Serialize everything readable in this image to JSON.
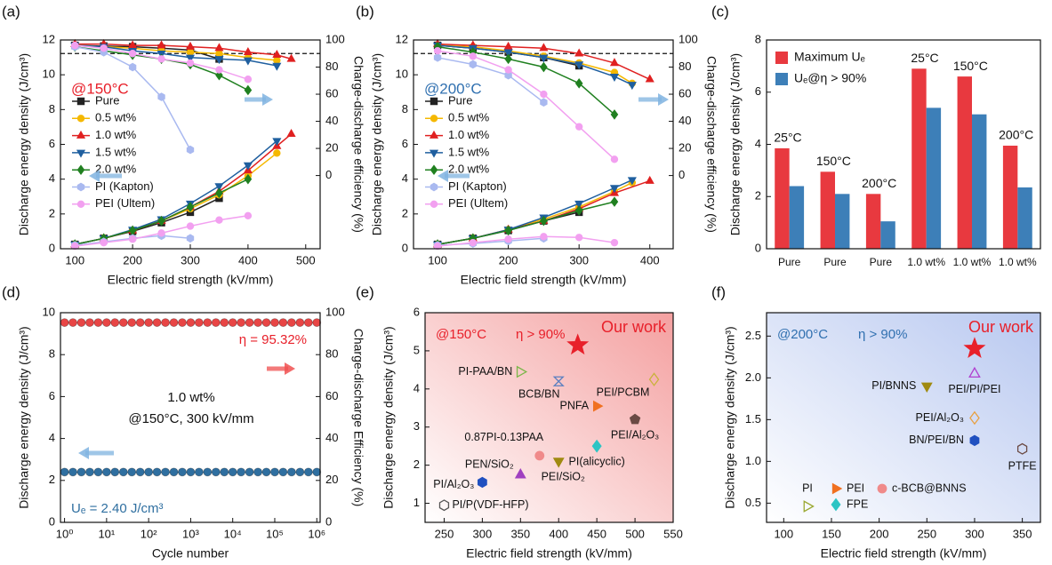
{
  "chart_data": [
    {
      "type": "line",
      "panel": "(a)",
      "xlabel": "Electric field strength (kV/mm)",
      "ylabel": "Discharge energy density (J/cm³)",
      "y2label": "Charge-discharge efficiency (%)",
      "xlim": [
        75,
        525
      ],
      "xticks": [
        100,
        200,
        300,
        400,
        500
      ],
      "ylim": [
        0,
        12
      ],
      "yticks": [
        0,
        2,
        4,
        6,
        8,
        10,
        12
      ],
      "y2lim": [
        -54,
        100
      ],
      "y2ticks": [
        0,
        20,
        40,
        60,
        80,
        100
      ],
      "threshold": 90,
      "annotations": [
        {
          "text": "@150°C",
          "color": "#e8202a"
        }
      ],
      "series": [
        {
          "name": "Pure",
          "color": "#222222",
          "marker": "square",
          "x": [
            100,
            150,
            200,
            250,
            300,
            350
          ],
          "values": [
            0.25,
            0.6,
            1.0,
            1.5,
            2.1,
            2.9
          ],
          "efficiency": [
            96,
            95.5,
            95,
            94,
            92.5,
            86
          ]
        },
        {
          "name": "0.5 wt%",
          "color": "#f5b800",
          "marker": "circle",
          "x": [
            100,
            150,
            200,
            250,
            300,
            350,
            400,
            450
          ],
          "values": [
            0.25,
            0.6,
            1.05,
            1.6,
            2.3,
            3.1,
            4.2,
            5.5
          ],
          "efficiency": [
            96,
            95,
            94,
            92,
            91,
            90,
            87,
            85
          ]
        },
        {
          "name": "1.0 wt%",
          "color": "#e02020",
          "marker": "tri-up",
          "x": [
            100,
            150,
            200,
            250,
            300,
            350,
            400,
            450,
            475
          ],
          "values": [
            0.25,
            0.6,
            1.05,
            1.6,
            2.4,
            3.3,
            4.5,
            5.9,
            6.6
          ],
          "efficiency": [
            97,
            97,
            96,
            96,
            95,
            94,
            91,
            89,
            86
          ]
        },
        {
          "name": "1.5 wt%",
          "color": "#1f5f9f",
          "marker": "tri-down",
          "x": [
            100,
            150,
            200,
            250,
            300,
            350,
            400,
            450
          ],
          "values": [
            0.25,
            0.6,
            1.1,
            1.7,
            2.6,
            3.6,
            4.8,
            6.2
          ],
          "efficiency": [
            96,
            95,
            92,
            90,
            87,
            86,
            85,
            81
          ]
        },
        {
          "name": "2.0 wt%",
          "color": "#208020",
          "marker": "diamond",
          "x": [
            100,
            150,
            200,
            250,
            300,
            350,
            400
          ],
          "values": [
            0.25,
            0.6,
            1.05,
            1.6,
            2.4,
            3.2,
            4.0
          ],
          "efficiency": [
            95,
            92,
            89,
            86,
            82,
            74,
            63
          ]
        },
        {
          "name": "PI (Kapton)",
          "color": "#a9b9f0",
          "marker": "hexagon",
          "x": [
            100,
            150,
            200,
            250,
            300
          ],
          "values": [
            0.2,
            0.4,
            0.6,
            0.75,
            0.6
          ],
          "efficiency": [
            95,
            91,
            80,
            58,
            19
          ]
        },
        {
          "name": "PEI (Ultem)",
          "color": "#f2a0f0",
          "marker": "circle",
          "x": [
            100,
            150,
            200,
            250,
            300,
            350,
            400
          ],
          "values": [
            0.15,
            0.35,
            0.55,
            0.9,
            1.3,
            1.65,
            1.9
          ],
          "efficiency": [
            96,
            94,
            90,
            86,
            83,
            78,
            71
          ]
        }
      ]
    },
    {
      "type": "line",
      "panel": "(b)",
      "xlabel": "Electric field strength (kV/mm)",
      "ylabel": "Discharge energy density (J/cm³)",
      "y2label": "Charge-discharge efficiency (%)",
      "xlim": [
        66,
        433
      ],
      "xticks": [
        100,
        200,
        300,
        400
      ],
      "ylim": [
        0,
        12
      ],
      "yticks": [
        0,
        2,
        4,
        6,
        8,
        10,
        12
      ],
      "y2lim": [
        -54,
        100
      ],
      "y2ticks": [
        0,
        20,
        40,
        60,
        80,
        100
      ],
      "threshold": 90,
      "annotations": [
        {
          "text": "@200°C",
          "color": "#3070b0"
        }
      ],
      "series": [
        {
          "name": "Pure",
          "color": "#222222",
          "marker": "square",
          "x": [
            100,
            150,
            200,
            250,
            300
          ],
          "values": [
            0.25,
            0.6,
            1.05,
            1.6,
            2.1
          ],
          "efficiency": [
            96,
            94,
            91,
            87,
            81
          ]
        },
        {
          "name": "0.5 wt%",
          "color": "#f5b800",
          "marker": "circle",
          "x": [
            100,
            150,
            200,
            250,
            300,
            350,
            375
          ],
          "values": [
            0.25,
            0.6,
            1.1,
            1.7,
            2.4,
            3.3,
            3.8
          ],
          "efficiency": [
            96,
            95,
            92,
            88,
            83,
            76,
            68
          ]
        },
        {
          "name": "1.0 wt%",
          "color": "#e02020",
          "marker": "tri-up",
          "x": [
            100,
            150,
            200,
            250,
            300,
            350,
            400
          ],
          "values": [
            0.25,
            0.6,
            1.1,
            1.6,
            2.3,
            3.2,
            3.9
          ],
          "efficiency": [
            97,
            96,
            95,
            94,
            90,
            83,
            71
          ]
        },
        {
          "name": "1.5 wt%",
          "color": "#1f5f9f",
          "marker": "tri-down",
          "x": [
            100,
            150,
            200,
            250,
            300,
            350,
            375
          ],
          "values": [
            0.25,
            0.6,
            1.1,
            1.8,
            2.6,
            3.5,
            3.95
          ],
          "efficiency": [
            96,
            94,
            91,
            87,
            82,
            73,
            67
          ]
        },
        {
          "name": "2.0 wt%",
          "color": "#208020",
          "marker": "diamond",
          "x": [
            100,
            150,
            200,
            250,
            300,
            350
          ],
          "values": [
            0.25,
            0.6,
            1.05,
            1.6,
            2.2,
            2.7
          ],
          "efficiency": [
            95,
            91,
            86,
            80,
            68,
            45
          ]
        },
        {
          "name": "PI (Kapton)",
          "color": "#a9b9f0",
          "marker": "hexagon",
          "x": [
            100,
            150,
            200,
            250
          ],
          "values": [
            0.2,
            0.3,
            0.45,
            0.6
          ],
          "efficiency": [
            87,
            82,
            74,
            54
          ]
        },
        {
          "name": "PEI (Ultem)",
          "color": "#f2a0f0",
          "marker": "circle",
          "x": [
            100,
            150,
            200,
            250,
            300,
            350
          ],
          "values": [
            0.15,
            0.35,
            0.55,
            0.7,
            0.65,
            0.35
          ],
          "efficiency": [
            92,
            88,
            78,
            60,
            36,
            12
          ]
        }
      ]
    },
    {
      "type": "bar",
      "panel": "(c)",
      "ylabel": "Discharge energy density (J/cm³)",
      "categories": [
        "Pure",
        "Pure",
        "Pure",
        "1.0 wt%",
        "1.0 wt%",
        "1.0 wt%"
      ],
      "bar_labels": [
        "25°C",
        "150°C",
        "200°C",
        "25°C",
        "150°C",
        "200°C"
      ],
      "ylim": [
        0,
        8
      ],
      "yticks": [
        0,
        2,
        4,
        6,
        8
      ],
      "series": [
        {
          "name": "Maximum Uₑ",
          "color": "#e8393f",
          "values": [
            3.85,
            2.95,
            2.1,
            6.9,
            6.6,
            3.95
          ]
        },
        {
          "name": "Uₑ@η > 90%",
          "color": "#3d7fb8",
          "values": [
            2.4,
            2.1,
            1.05,
            5.4,
            5.15,
            2.35
          ]
        }
      ]
    },
    {
      "type": "line",
      "panel": "(d)",
      "xlabel": "Cycle number",
      "ylabel": "Discharge energy density (J/cm³)",
      "y2label": "Charge-discharge Efficiency (%)",
      "xlog": true,
      "xlim": [
        0.8,
        1200000
      ],
      "xticks": [
        {
          "value": 1,
          "label": "10⁰"
        },
        {
          "value": 10,
          "label": "10¹"
        },
        {
          "value": 100,
          "label": "10²"
        },
        {
          "value": 1000,
          "label": "10³"
        },
        {
          "value": 10000,
          "label": "10⁴"
        },
        {
          "value": 100000,
          "label": "10⁵"
        },
        {
          "value": 1000000,
          "label": "10⁶"
        }
      ],
      "ylim": [
        0,
        10
      ],
      "yticks": [
        0,
        2,
        4,
        6,
        8,
        10
      ],
      "y2lim": [
        0,
        100
      ],
      "y2ticks": [
        0,
        20,
        40,
        60,
        80,
        100
      ],
      "annotations": [
        {
          "text": "η = 95.32%",
          "color": "#e8202a"
        },
        {
          "text": "1.0 wt%",
          "color": "#111111"
        },
        {
          "text": "@150°C, 300 kV/mm",
          "color": "#111111"
        },
        {
          "text": "Uₑ = 2.40 J/cm³",
          "color": "#2f6fa0"
        }
      ],
      "x": [
        1,
        1.58,
        2.51,
        3.98,
        6.31,
        10,
        15.8,
        25.1,
        39.8,
        63.1,
        100,
        158,
        251,
        398,
        631,
        1000,
        1580,
        2510,
        3980,
        6310,
        10000,
        15800,
        25100,
        39800,
        63100,
        100000,
        158000,
        251000,
        398000,
        631000,
        1000000
      ],
      "series": [
        {
          "color": "#e84545",
          "marker": "ball",
          "axis": "y2",
          "values": [
            95.3,
            95.3,
            95.3,
            95.3,
            95.3,
            95.3,
            95.3,
            95.3,
            95.3,
            95.3,
            95.3,
            95.3,
            95.3,
            95.3,
            95.3,
            95.3,
            95.3,
            95.3,
            95.3,
            95.3,
            95.3,
            95.3,
            95.3,
            95.3,
            95.3,
            95.3,
            95.3,
            95.3,
            95.3,
            95.3,
            95.3
          ]
        },
        {
          "color": "#2f6fa0",
          "marker": "ball",
          "values": [
            2.4,
            2.4,
            2.4,
            2.4,
            2.4,
            2.4,
            2.4,
            2.4,
            2.4,
            2.4,
            2.4,
            2.4,
            2.4,
            2.4,
            2.4,
            2.4,
            2.4,
            2.4,
            2.4,
            2.4,
            2.4,
            2.4,
            2.4,
            2.4,
            2.4,
            2.4,
            2.4,
            2.4,
            2.4,
            2.4,
            2.4
          ]
        }
      ]
    },
    {
      "type": "scatter",
      "panel": "(e)",
      "xlabel": "Electric field strength (kV/mm)",
      "ylabel": "Discharge energy density (J/cm³)",
      "background": "#f4a0a0",
      "xlim": [
        225,
        550
      ],
      "xticks": [
        250,
        300,
        350,
        400,
        450,
        500,
        550
      ],
      "ylim": [
        0.5,
        6
      ],
      "yticks": [
        1,
        2,
        3,
        4,
        5,
        6
      ],
      "annotations": [
        {
          "text": "@150°C",
          "color": "#e8202a"
        },
        {
          "text": "η > 90%",
          "color": "#e8202a"
        }
      ],
      "highlight": {
        "label": "Our work",
        "x": 425,
        "y": 5.15,
        "color": "#e8202a"
      },
      "points": [
        {
          "label": "PI-PAA/BN",
          "x": 350,
          "y": 4.45,
          "color": "#7ab648",
          "marker": "tri-right",
          "open": true
        },
        {
          "label": "BCB/BN",
          "x": 400,
          "y": 4.2,
          "color": "#5b7fc0",
          "marker": "hourglass",
          "open": true
        },
        {
          "label": "PEI/PCBM",
          "x": 525,
          "y": 4.25,
          "color": "#c9b23a",
          "marker": "diamond",
          "open": true
        },
        {
          "label": "PNFA",
          "x": 450,
          "y": 3.55,
          "color": "#f07020",
          "marker": "tri-right"
        },
        {
          "label": "PEI/Al₂O₃",
          "x": 500,
          "y": 3.2,
          "color": "#6b4a44",
          "marker": "pentagon"
        },
        {
          "label": "0.87PI-0.13PAA",
          "x": 375,
          "y": 2.25,
          "color": "#f08a8a",
          "marker": "circle"
        },
        {
          "label": "PI(alicyclic)",
          "x": 450,
          "y": 2.5,
          "color": "#2cc4c4",
          "marker": "diamond"
        },
        {
          "label": "PEN/SiO₂",
          "x": 350,
          "y": 1.75,
          "color": "#a040c0",
          "marker": "tri-up"
        },
        {
          "label": "PEI/SiO₂",
          "x": 400,
          "y": 2.1,
          "color": "#a08a10",
          "marker": "tri-down"
        },
        {
          "label": "PI/Al₂O₃",
          "x": 300,
          "y": 1.55,
          "color": "#2050c0",
          "marker": "hexagon"
        },
        {
          "label": "PI/P(VDF-HFP)",
          "x": 250,
          "y": 0.95,
          "color": "#555555",
          "marker": "hexagon",
          "open": true
        }
      ]
    },
    {
      "type": "scatter",
      "panel": "(f)",
      "xlabel": "Electric field strength (kV/mm)",
      "ylabel": "Discharge energy density (J/cm³)",
      "background": "#b8c8f0",
      "xlim": [
        82,
        369
      ],
      "xticks": [
        100,
        150,
        200,
        250,
        300,
        350
      ],
      "ylim": [
        0.27,
        2.78
      ],
      "yticks": [
        0.5,
        {
          "value": 1,
          "label": "1.0"
        },
        1.5,
        {
          "value": 2,
          "label": "2.0"
        },
        2.5
      ],
      "annotations": [
        {
          "text": "@200°C",
          "color": "#3070b0"
        },
        {
          "text": "η > 90%",
          "color": "#3070b0"
        }
      ],
      "highlight": {
        "label": "Our work",
        "x": 300,
        "y": 2.35,
        "color": "#e8202a"
      },
      "points": [
        {
          "label": "PEI/PI/PEI",
          "x": 300,
          "y": 2.05,
          "color": "#b040d0",
          "marker": "tri-up",
          "open": true
        },
        {
          "label": "PI/BNNS",
          "x": 250,
          "y": 1.9,
          "color": "#a08a10",
          "marker": "tri-down"
        },
        {
          "label": "PEI/Al₂O₃",
          "x": 300,
          "y": 1.52,
          "color": "#e8a040",
          "marker": "diamond",
          "open": true
        },
        {
          "label": "BN/PEI/BN",
          "x": 300,
          "y": 1.25,
          "color": "#2050c0",
          "marker": "hexagon"
        },
        {
          "label": "PTFE",
          "x": 350,
          "y": 1.15,
          "color": "#6b4a44",
          "marker": "hexagon",
          "open": true
        }
      ],
      "legend": [
        {
          "name": "PI",
          "color": "#9aa830",
          "marker": "tri-right",
          "open": true
        },
        {
          "name": "PEI",
          "color": "#f07020",
          "marker": "tri-right"
        },
        {
          "name": "c-BCB@BNNS",
          "color": "#f08a8a",
          "marker": "circle"
        },
        {
          "name": "FPE",
          "color": "#2cc4c4",
          "marker": "diamond"
        }
      ]
    }
  ]
}
